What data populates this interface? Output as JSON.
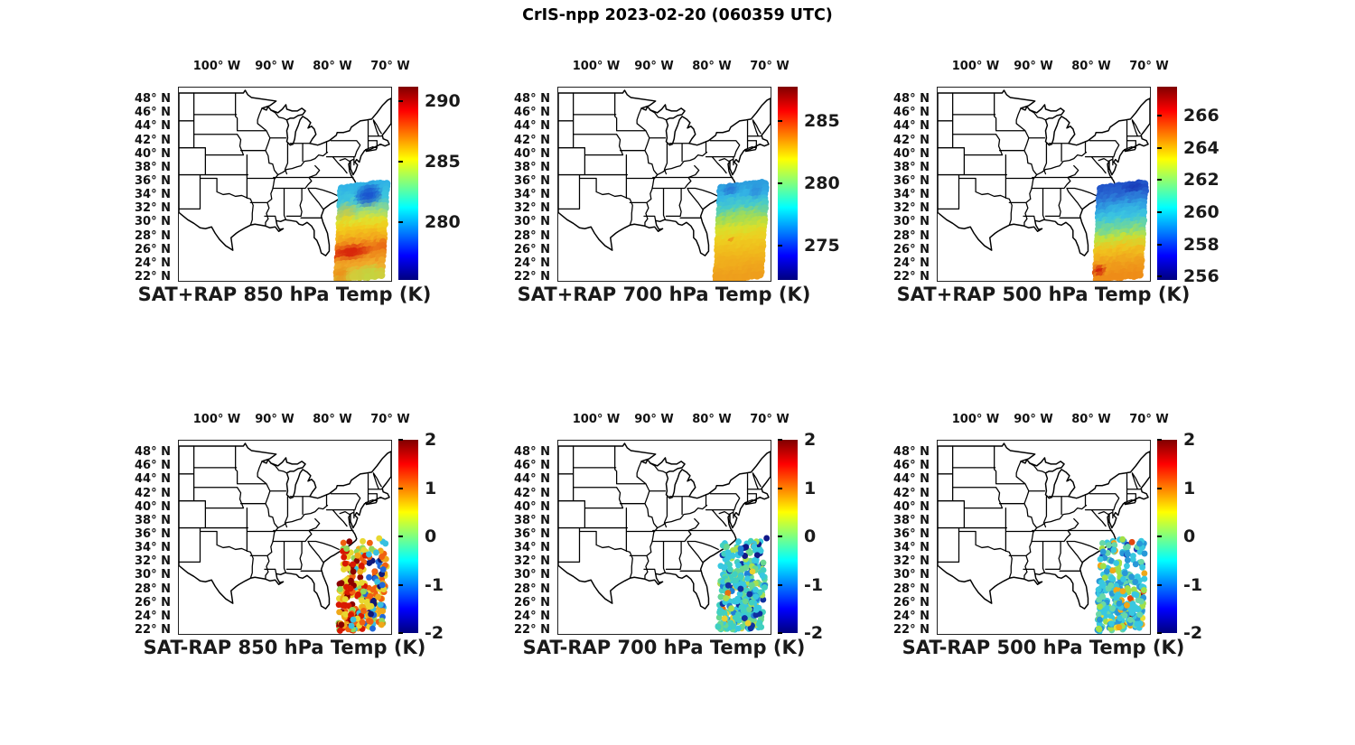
{
  "figure_title": "CrIS-npp 2023-02-20 (060359 UTC)",
  "chart_data": {
    "type": "map-scatter-grid",
    "title": "CrIS-npp 2023-02-20 (060359 UTC)",
    "rows": 2,
    "cols": 3,
    "legend_position": "right-colorbar-per-panel",
    "colormap": "jet",
    "axes": {
      "lon_labels": [
        "100° W",
        "90° W",
        "80° W",
        "70° W"
      ],
      "lat_labels": [
        "48° N",
        "46° N",
        "44° N",
        "42° N",
        "40° N",
        "38° N",
        "36° N",
        "34° N",
        "32° N",
        "30° N",
        "28° N",
        "26° N",
        "24° N",
        "22° N"
      ]
    },
    "panels": [
      {
        "id": "sat-plus-rap-850",
        "title": "SAT+RAP 850 hPa Temp (K)",
        "style": "swath",
        "seed": 11,
        "colorbar": {
          "min": 275.2,
          "max": 291.2,
          "ticks": [
            290,
            285,
            280
          ],
          "units": "K"
        },
        "swath_stops": [
          [
            0,
            "#30b2e6"
          ],
          [
            0.16,
            "#3cc4de"
          ],
          [
            0.28,
            "#8ed88c"
          ],
          [
            0.38,
            "#dce432"
          ],
          [
            0.48,
            "#f2cc1c"
          ],
          [
            0.6,
            "#f2a41c"
          ],
          [
            0.7,
            "#ea6a14"
          ],
          [
            0.78,
            "#ee8c1c"
          ],
          [
            0.88,
            "#f0ac2a"
          ],
          [
            1,
            "#d2cc3a"
          ]
        ],
        "features": [
          {
            "u": 0.62,
            "v": 0.13,
            "ru": 0.33,
            "rv": 0.14,
            "s": 0.85,
            "color": "#1440cc"
          },
          {
            "u": 0.15,
            "v": 0.3,
            "ru": 0.25,
            "rv": 0.12,
            "s": 0.5,
            "color": "#e8c020"
          },
          {
            "u": 0.3,
            "v": 0.74,
            "ru": 0.5,
            "rv": 0.08,
            "s": 0.9,
            "color": "#d41808"
          },
          {
            "u": 0.1,
            "v": 0.96,
            "ru": 0.22,
            "rv": 0.1,
            "s": 0.8,
            "color": "#ee8814"
          },
          {
            "u": 0.72,
            "v": 0.97,
            "ru": 0.3,
            "rv": 0.08,
            "s": 0.6,
            "color": "#b8dc44"
          }
        ]
      },
      {
        "id": "sat-plus-rap-700",
        "title": "SAT+RAP 700 hPa Temp (K)",
        "style": "swath",
        "seed": 22,
        "colorbar": {
          "min": 272.3,
          "max": 287.7,
          "ticks": [
            285,
            280,
            275
          ],
          "units": "K"
        },
        "swath_stops": [
          [
            0,
            "#2c9ede"
          ],
          [
            0.12,
            "#34b6e6"
          ],
          [
            0.24,
            "#48ccc8"
          ],
          [
            0.36,
            "#9cdc5c"
          ],
          [
            0.48,
            "#d8e02c"
          ],
          [
            0.6,
            "#eece20"
          ],
          [
            0.74,
            "#f0ba1c"
          ],
          [
            0.88,
            "#f0aa1c"
          ],
          [
            1,
            "#ee9e1c"
          ]
        ],
        "features": [
          {
            "u": 0.25,
            "v": 0.05,
            "ru": 0.2,
            "rv": 0.07,
            "s": 0.7,
            "color": "#2466d2"
          },
          {
            "u": 0.8,
            "v": 0.1,
            "ru": 0.18,
            "rv": 0.08,
            "s": 0.6,
            "color": "#2a7ad8"
          },
          {
            "u": 0.3,
            "v": 0.6,
            "ru": 0.07,
            "rv": 0.035,
            "s": 0.8,
            "color": "#ee7814"
          },
          {
            "u": 0.65,
            "v": 0.35,
            "ru": 0.3,
            "rv": 0.1,
            "s": 0.4,
            "color": "#a8dc50"
          }
        ]
      },
      {
        "id": "sat-plus-rap-500",
        "title": "SAT+RAP 500 hPa Temp (K)",
        "style": "swath",
        "seed": 33,
        "colorbar": {
          "min": 255.8,
          "max": 267.8,
          "ticks": [
            266,
            264,
            262,
            260,
            258,
            256
          ],
          "units": "K"
        },
        "swath_stops": [
          [
            0,
            "#2152c8"
          ],
          [
            0.12,
            "#2a6ed4"
          ],
          [
            0.24,
            "#30a2e2"
          ],
          [
            0.36,
            "#3cc6de"
          ],
          [
            0.48,
            "#74d894"
          ],
          [
            0.58,
            "#c2e23c"
          ],
          [
            0.7,
            "#f0c41e"
          ],
          [
            0.84,
            "#f0a21c"
          ],
          [
            1,
            "#ee8c18"
          ]
        ],
        "features": [
          {
            "u": 0.75,
            "v": 0.05,
            "ru": 0.25,
            "rv": 0.07,
            "s": 0.8,
            "color": "#1634b4"
          },
          {
            "u": 0.1,
            "v": 0.92,
            "ru": 0.15,
            "rv": 0.07,
            "s": 0.9,
            "color": "#cc1408"
          },
          {
            "u": 0.5,
            "v": 0.3,
            "ru": 0.4,
            "rv": 0.1,
            "s": 0.3,
            "color": "#38c8e8"
          }
        ]
      },
      {
        "id": "sat-minus-rap-850",
        "title": "SAT-RAP 850 hPa Temp (K)",
        "style": "dots",
        "seed": 44,
        "colorbar": {
          "min": -2,
          "max": 2,
          "ticks": [
            2,
            1,
            0,
            -1,
            -2
          ],
          "units": "K"
        },
        "dot_colors": [
          {
            "color": "#8b0000",
            "weight": 3,
            "u": [
              0,
              0.45
            ]
          },
          {
            "color": "#d81800",
            "weight": 3,
            "u": [
              0,
              0.55
            ]
          },
          {
            "color": "#f06010",
            "weight": 2.5
          },
          {
            "color": "#f0a818",
            "weight": 2.5
          },
          {
            "color": "#e8d830",
            "weight": 2.5
          },
          {
            "color": "#90d858",
            "weight": 1
          },
          {
            "color": "#38c0e0",
            "weight": 2,
            "u": [
              0.3,
              1
            ]
          },
          {
            "color": "#2068d8",
            "weight": 2,
            "u": [
              0.5,
              1
            ]
          },
          {
            "color": "#101878",
            "weight": 2,
            "u": [
              0.6,
              1
            ]
          }
        ]
      },
      {
        "id": "sat-minus-rap-700",
        "title": "SAT-RAP 700 hPa Temp (K)",
        "style": "dots",
        "seed": 55,
        "colorbar": {
          "min": -2,
          "max": 2,
          "ticks": [
            2,
            1,
            0,
            -1,
            -2
          ],
          "units": "K"
        },
        "dot_colors": [
          {
            "color": "#38c8e0",
            "weight": 3
          },
          {
            "color": "#40d0c0",
            "weight": 2
          },
          {
            "color": "#68d890",
            "weight": 2
          },
          {
            "color": "#a8e050",
            "weight": 1.2
          },
          {
            "color": "#2080d8",
            "weight": 1
          },
          {
            "color": "#101888",
            "weight": 2.5,
            "u": [
              0.35,
              1
            ],
            "v": [
              0,
              0.22
            ]
          },
          {
            "color": "#1030a0",
            "weight": 0.6
          },
          {
            "color": "#e8d030",
            "weight": 0.5
          },
          {
            "color": "#e87010",
            "weight": 0.25
          }
        ]
      },
      {
        "id": "sat-minus-rap-500",
        "title": "SAT-RAP 500 hPa Temp (K)",
        "style": "dots",
        "seed": 66,
        "colorbar": {
          "min": -2,
          "max": 2,
          "ticks": [
            2,
            1,
            0,
            -1,
            -2
          ],
          "units": "K"
        },
        "dot_colors": [
          {
            "color": "#38c8e0",
            "weight": 3
          },
          {
            "color": "#2898d8",
            "weight": 2
          },
          {
            "color": "#68d8a8",
            "weight": 2
          },
          {
            "color": "#a0e048",
            "weight": 1.2
          },
          {
            "color": "#1840b8",
            "weight": 1.5,
            "v": [
              0,
              0.35
            ]
          },
          {
            "color": "#f0a818",
            "weight": 0.8
          },
          {
            "color": "#e04810",
            "weight": 0.7,
            "u": [
              0.55,
              1
            ]
          },
          {
            "color": "#8b0000",
            "weight": 0.3,
            "u": [
              0.6,
              1
            ]
          },
          {
            "color": "#e8e030",
            "weight": 0.6,
            "v": [
              0.8,
              1
            ]
          }
        ]
      }
    ]
  }
}
